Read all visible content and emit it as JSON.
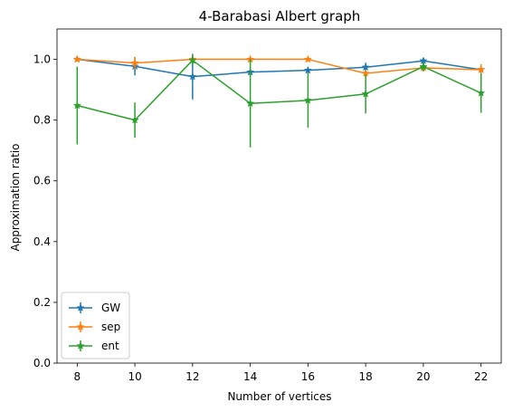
{
  "chart_data": {
    "type": "line",
    "title": "4-Barabasi Albert graph",
    "xlabel": "Number of vertices",
    "ylabel": "Approximation ratio",
    "x": [
      8,
      10,
      12,
      14,
      16,
      18,
      20,
      22
    ],
    "xlim": [
      7.3,
      22.7
    ],
    "ylim": [
      0.0,
      1.1
    ],
    "xticks": [
      8,
      10,
      12,
      14,
      16,
      18,
      20,
      22
    ],
    "yticks": [
      "0.0",
      "0.2",
      "0.4",
      "0.6",
      "0.8",
      "1.0"
    ],
    "grid": false,
    "legend_position": "lower-left",
    "series": [
      {
        "name": "GW",
        "color": "#1f77b4",
        "values": [
          1.0,
          0.977,
          0.943,
          0.958,
          0.964,
          0.974,
          0.995,
          0.966
        ],
        "errors": [
          0.005,
          0.03,
          0.075,
          0.012,
          0.01,
          0.015,
          0.01,
          0.008
        ]
      },
      {
        "name": "sep",
        "color": "#ff7f0e",
        "values": [
          1.0,
          0.988,
          1.0,
          1.0,
          1.0,
          0.954,
          0.972,
          0.966
        ],
        "errors": [
          0.005,
          0.02,
          0.005,
          0.005,
          0.005,
          0.01,
          0.012,
          0.018
        ]
      },
      {
        "name": "ent",
        "color": "#2ca02c",
        "values": [
          0.848,
          0.8,
          0.997,
          0.855,
          0.865,
          0.886,
          0.976,
          0.889
        ],
        "errors": [
          0.128,
          0.058,
          0.018,
          0.145,
          0.09,
          0.064,
          0.015,
          0.065
        ]
      }
    ]
  }
}
